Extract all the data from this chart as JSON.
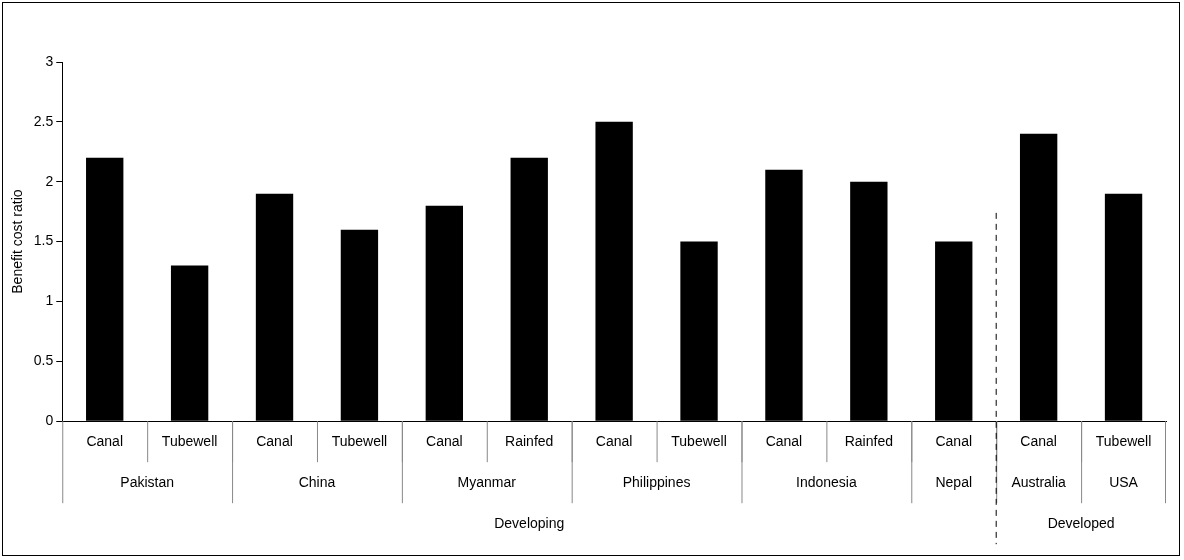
{
  "chart_data": {
    "type": "bar",
    "ylabel": "Benefit cost ratio",
    "categories": [
      "Canal",
      "Tubewell",
      "Canal",
      "Tubewell",
      "Canal",
      "Rainfed",
      "Canal",
      "Tubewell",
      "Canal",
      "Rainfed",
      "Canal",
      "Canal",
      "Tubewell"
    ],
    "values": [
      2.2,
      1.3,
      1.9,
      1.6,
      1.8,
      2.2,
      2.5,
      1.5,
      2.1,
      2.0,
      1.5,
      2.4,
      1.9
    ],
    "color": "#000000",
    "ylim": [
      0,
      3
    ],
    "yticks": [
      0,
      0.5,
      1,
      1.5,
      2,
      2.5,
      3
    ],
    "grid": false,
    "legend": false,
    "annotations": [
      "Pakistan",
      "China",
      "Myanmar",
      "Philippines",
      "Indonesia",
      "Nepal",
      "Australia",
      "USA",
      "Developing",
      "Developed"
    ]
  }
}
